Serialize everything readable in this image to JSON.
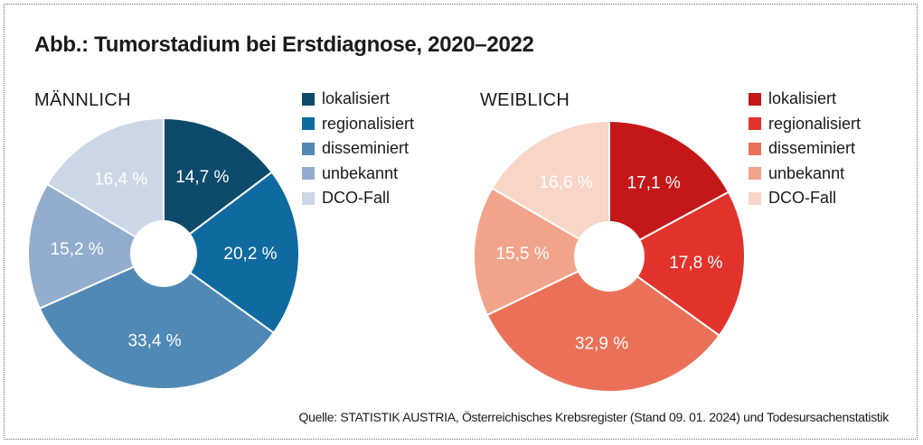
{
  "title": "Abb.: Tumorstadium bei Erstdiagnose, 2020–2022",
  "source": "Quelle: STATISTIK AUSTRIA, Österreichisches Krebsregister (Stand 09. 01. 2024) und Todesursachenstatistik",
  "chart_data": [
    {
      "type": "pie",
      "title": "MÄNNLICH",
      "donut": true,
      "categories": [
        "lokalisiert",
        "regionalisiert",
        "disseminiert",
        "unbekannt",
        "DCO-Fall"
      ],
      "values": [
        14.7,
        20.2,
        33.4,
        15.2,
        16.4
      ],
      "value_labels": [
        "14,7 %",
        "20,2 %",
        "33,4 %",
        "15,2 %",
        "16,4 %"
      ],
      "colors": [
        "#0d4a6b",
        "#0f6aa0",
        "#5189b6",
        "#92adcd",
        "#cbd7e7"
      ],
      "legend_position": "right"
    },
    {
      "type": "pie",
      "title": "WEIBLICH",
      "donut": true,
      "categories": [
        "lokalisiert",
        "regionalisiert",
        "disseminiert",
        "unbekannt",
        "DCO-Fall"
      ],
      "values": [
        17.1,
        17.8,
        32.9,
        15.5,
        16.6
      ],
      "value_labels": [
        "17,1 %",
        "17,8 %",
        "32,9 %",
        "15,5 %",
        "16,6 %"
      ],
      "colors": [
        "#c41719",
        "#e1322c",
        "#ea7157",
        "#f1a48a",
        "#f9d5c7"
      ],
      "legend_position": "right"
    }
  ]
}
